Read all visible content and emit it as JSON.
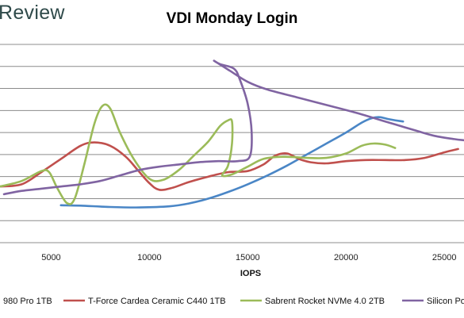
{
  "brand": "Review",
  "chart_data": {
    "type": "scatter",
    "title": "VDI Monday Login",
    "xlabel": "IOPS",
    "ylabel": "",
    "x_ticks": [
      5000,
      10000,
      15000,
      20000,
      25000
    ],
    "xlim": [
      2400,
      26000
    ],
    "ylim": [
      0,
      9
    ],
    "grid": "horizontal",
    "legend": "bottom",
    "series": [
      {
        "name": "980 Pro 1TB",
        "color": "#4a86c6",
        "points": [
          [
            5500,
            1.7
          ],
          [
            6500,
            1.68
          ],
          [
            8000,
            1.62
          ],
          [
            9500,
            1.6
          ],
          [
            11000,
            1.65
          ],
          [
            12000,
            1.78
          ],
          [
            13000,
            2.0
          ],
          [
            14000,
            2.3
          ],
          [
            15000,
            2.65
          ],
          [
            16000,
            3.05
          ],
          [
            17000,
            3.5
          ],
          [
            18000,
            4.0
          ],
          [
            19000,
            4.5
          ],
          [
            20000,
            5.0
          ],
          [
            20800,
            5.45
          ],
          [
            21300,
            5.65
          ],
          [
            21700,
            5.7
          ],
          [
            22200,
            5.6
          ],
          [
            22900,
            5.5
          ]
        ]
      },
      {
        "name": "T-Force Cardea Ceramic C440 1TB",
        "color": "#c0504d",
        "points": [
          [
            2400,
            2.55
          ],
          [
            3500,
            2.65
          ],
          [
            4500,
            3.2
          ],
          [
            5500,
            3.8
          ],
          [
            6500,
            4.4
          ],
          [
            7200,
            4.55
          ],
          [
            8000,
            4.4
          ],
          [
            8800,
            3.9
          ],
          [
            9400,
            3.3
          ],
          [
            10000,
            2.7
          ],
          [
            10500,
            2.4
          ],
          [
            11200,
            2.5
          ],
          [
            12000,
            2.75
          ],
          [
            13000,
            3.0
          ],
          [
            14000,
            3.2
          ],
          [
            15000,
            3.25
          ],
          [
            15800,
            3.55
          ],
          [
            16400,
            3.95
          ],
          [
            17000,
            4.05
          ],
          [
            17600,
            3.8
          ],
          [
            18200,
            3.65
          ],
          [
            19000,
            3.6
          ],
          [
            20000,
            3.7
          ],
          [
            21000,
            3.75
          ],
          [
            22000,
            3.75
          ],
          [
            23000,
            3.75
          ],
          [
            24000,
            3.85
          ],
          [
            25000,
            4.1
          ],
          [
            25700,
            4.25
          ]
        ]
      },
      {
        "name": "Sabrent Rocket NVMe 4.0 2TB",
        "color": "#9bbb59",
        "points": [
          [
            2400,
            2.55
          ],
          [
            3500,
            2.8
          ],
          [
            4500,
            3.25
          ],
          [
            4900,
            3.2
          ],
          [
            5300,
            2.5
          ],
          [
            5800,
            1.8
          ],
          [
            6200,
            2.0
          ],
          [
            6700,
            3.6
          ],
          [
            7200,
            5.4
          ],
          [
            7600,
            6.2
          ],
          [
            8000,
            6.1
          ],
          [
            8500,
            5.0
          ],
          [
            9200,
            3.8
          ],
          [
            10000,
            2.9
          ],
          [
            10700,
            2.85
          ],
          [
            11500,
            3.3
          ],
          [
            12200,
            3.9
          ],
          [
            13000,
            4.6
          ],
          [
            13600,
            5.3
          ],
          [
            14000,
            5.55
          ],
          [
            14200,
            5.5
          ],
          [
            14200,
            4.5
          ],
          [
            14000,
            3.5
          ],
          [
            13700,
            3.05
          ],
          [
            14200,
            3.1
          ],
          [
            15000,
            3.45
          ],
          [
            15800,
            3.8
          ],
          [
            16800,
            3.9
          ],
          [
            18000,
            3.85
          ],
          [
            19000,
            3.85
          ],
          [
            20000,
            4.05
          ],
          [
            20800,
            4.4
          ],
          [
            21400,
            4.5
          ],
          [
            22000,
            4.45
          ],
          [
            22500,
            4.3
          ]
        ]
      },
      {
        "name": "Silicon Power",
        "color": "#8064a2",
        "points": [
          [
            2600,
            2.2
          ],
          [
            3500,
            2.35
          ],
          [
            4500,
            2.45
          ],
          [
            5500,
            2.55
          ],
          [
            6500,
            2.65
          ],
          [
            7500,
            2.8
          ],
          [
            8500,
            3.05
          ],
          [
            9500,
            3.3
          ],
          [
            10500,
            3.45
          ],
          [
            11500,
            3.55
          ],
          [
            12500,
            3.65
          ],
          [
            13500,
            3.7
          ],
          [
            14500,
            3.7
          ],
          [
            15100,
            3.9
          ],
          [
            15200,
            5.0
          ],
          [
            15000,
            6.3
          ],
          [
            14600,
            7.4
          ],
          [
            14300,
            7.9
          ],
          [
            13600,
            8.1
          ],
          [
            13300,
            8.25
          ],
          [
            14100,
            7.8
          ],
          [
            15000,
            7.3
          ],
          [
            16000,
            6.95
          ],
          [
            17500,
            6.6
          ],
          [
            19000,
            6.25
          ],
          [
            20500,
            5.9
          ],
          [
            22000,
            5.5
          ],
          [
            23500,
            5.1
          ],
          [
            24500,
            4.85
          ],
          [
            25500,
            4.7
          ],
          [
            26000,
            4.65
          ]
        ]
      }
    ]
  }
}
